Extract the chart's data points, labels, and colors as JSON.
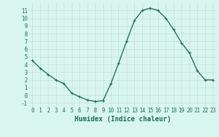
{
  "x": [
    0,
    1,
    2,
    3,
    4,
    5,
    6,
    7,
    8,
    9,
    10,
    11,
    12,
    13,
    14,
    15,
    16,
    17,
    18,
    19,
    20,
    21,
    22,
    23
  ],
  "y": [
    4.5,
    3.5,
    2.7,
    2.0,
    1.5,
    0.3,
    -0.2,
    -0.6,
    -0.8,
    -0.7,
    1.5,
    4.2,
    7.0,
    9.7,
    11.0,
    11.3,
    11.0,
    10.0,
    8.5,
    6.8,
    5.5,
    3.2,
    2.0,
    2.0
  ],
  "line_color": "#1a6b5a",
  "marker": "+",
  "markersize": 3,
  "linewidth": 1.0,
  "xlabel": "Humidex (Indice chaleur)",
  "xlabel_fontsize": 7,
  "bg_color": "#d8f5f0",
  "grid_color": "#c0ddd8",
  "xlim": [
    -0.5,
    23.5
  ],
  "ylim": [
    -1.5,
    12
  ],
  "yticks": [
    -1,
    0,
    1,
    2,
    3,
    4,
    5,
    6,
    7,
    8,
    9,
    10,
    11
  ],
  "xticks": [
    0,
    1,
    2,
    3,
    4,
    5,
    6,
    7,
    8,
    9,
    10,
    11,
    12,
    13,
    14,
    15,
    16,
    17,
    18,
    19,
    20,
    21,
    22,
    23
  ],
  "tick_fontsize": 5.5
}
